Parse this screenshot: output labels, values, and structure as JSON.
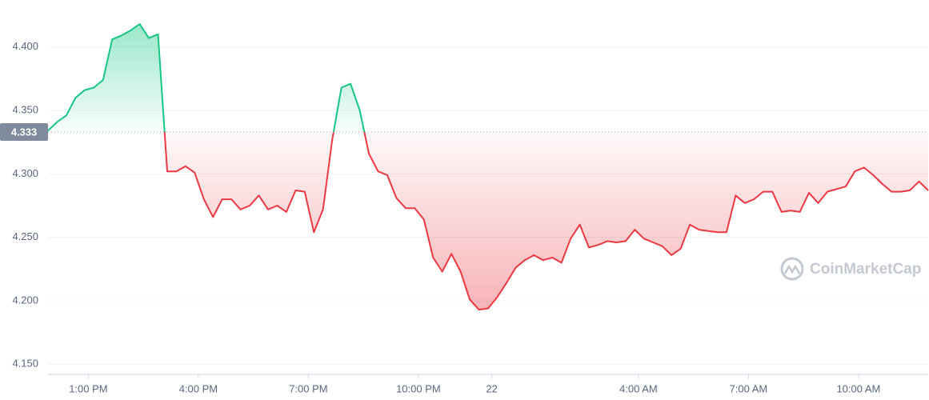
{
  "chart_data": {
    "type": "line",
    "x": [
      11.9,
      12.15,
      12.4,
      12.65,
      12.9,
      13.15,
      13.4,
      13.65,
      13.9,
      14.15,
      14.4,
      14.65,
      14.9,
      15.15,
      15.4,
      15.65,
      15.9,
      16.15,
      16.4,
      16.65,
      16.9,
      17.15,
      17.4,
      17.65,
      17.9,
      18.15,
      18.4,
      18.65,
      18.9,
      19.15,
      19.4,
      19.65,
      19.9,
      20.15,
      20.4,
      20.65,
      20.9,
      21.15,
      21.4,
      21.65,
      21.9,
      22.15,
      22.4,
      22.65,
      22.9,
      23.15,
      23.4,
      23.65,
      23.9,
      24.15,
      24.4,
      24.65,
      24.9,
      25.15,
      25.4,
      25.65,
      25.9,
      26.15,
      26.4,
      26.65,
      26.9,
      27.15,
      27.4,
      27.65,
      27.9,
      28.15,
      28.4,
      28.65,
      28.9,
      29.15,
      29.4,
      29.65,
      29.9,
      30.15,
      30.4,
      30.65,
      30.9,
      31.15,
      31.4,
      31.65,
      31.9,
      32.15,
      32.4,
      32.65,
      32.9,
      33.15,
      33.4,
      33.65,
      33.9,
      34.15,
      34.4,
      34.65,
      34.9,
      35.15,
      35.4,
      35.65,
      35.9
    ],
    "series": [
      {
        "values": [
          4.334,
          4.341,
          4.346,
          4.36,
          4.366,
          4.368,
          4.374,
          4.406,
          4.409,
          4.413,
          4.418,
          4.407,
          4.41,
          4.302,
          4.302,
          4.306,
          4.301,
          4.28,
          4.266,
          4.28,
          4.28,
          4.272,
          4.275,
          4.283,
          4.272,
          4.275,
          4.27,
          4.287,
          4.286,
          4.254,
          4.272,
          4.327,
          4.368,
          4.371,
          4.35,
          4.316,
          4.302,
          4.299,
          4.281,
          4.273,
          4.273,
          4.264,
          4.234,
          4.223,
          4.237,
          4.223,
          4.201,
          4.193,
          4.194,
          4.203,
          4.214,
          4.226,
          4.232,
          4.236,
          4.232,
          4.234,
          4.23,
          4.249,
          4.26,
          4.242,
          4.244,
          4.247,
          4.246,
          4.247,
          4.256,
          4.249,
          4.246,
          4.243,
          4.236,
          4.241,
          4.26,
          4.256,
          4.255,
          4.254,
          4.254,
          4.283,
          4.277,
          4.28,
          4.286,
          4.286,
          4.27,
          4.271,
          4.27,
          4.285,
          4.277,
          4.286,
          4.288,
          4.29,
          4.302,
          4.305,
          4.299,
          4.292,
          4.286,
          4.286,
          4.287,
          4.294,
          4.287
        ],
        "color_up": "#16c784",
        "color_down": "#ea3943"
      }
    ],
    "reference": 4.333,
    "xlim": [
      11.9,
      35.9
    ],
    "xticks": [
      {
        "value": 13,
        "label": "1:00 PM"
      },
      {
        "value": 16,
        "label": "4:00 PM"
      },
      {
        "value": 19,
        "label": "7:00 PM"
      },
      {
        "value": 22,
        "label": "10:00 PM"
      },
      {
        "value": 24,
        "label": "22"
      },
      {
        "value": 28,
        "label": "4:00 AM"
      },
      {
        "value": 31,
        "label": "7:00 AM"
      },
      {
        "value": 34,
        "label": "10:00 AM"
      }
    ],
    "ylim": [
      4.142,
      4.437
    ],
    "yticks": [
      {
        "value": 4.4,
        "label": "4.400"
      },
      {
        "value": 4.35,
        "label": "4.350"
      },
      {
        "value": 4.3,
        "label": "4.300"
      },
      {
        "value": 4.25,
        "label": "4.250"
      },
      {
        "value": 4.2,
        "label": "4.200"
      },
      {
        "value": 4.15,
        "label": "4.150"
      }
    ],
    "grid": true,
    "watermark": "CoinMarketCap"
  }
}
